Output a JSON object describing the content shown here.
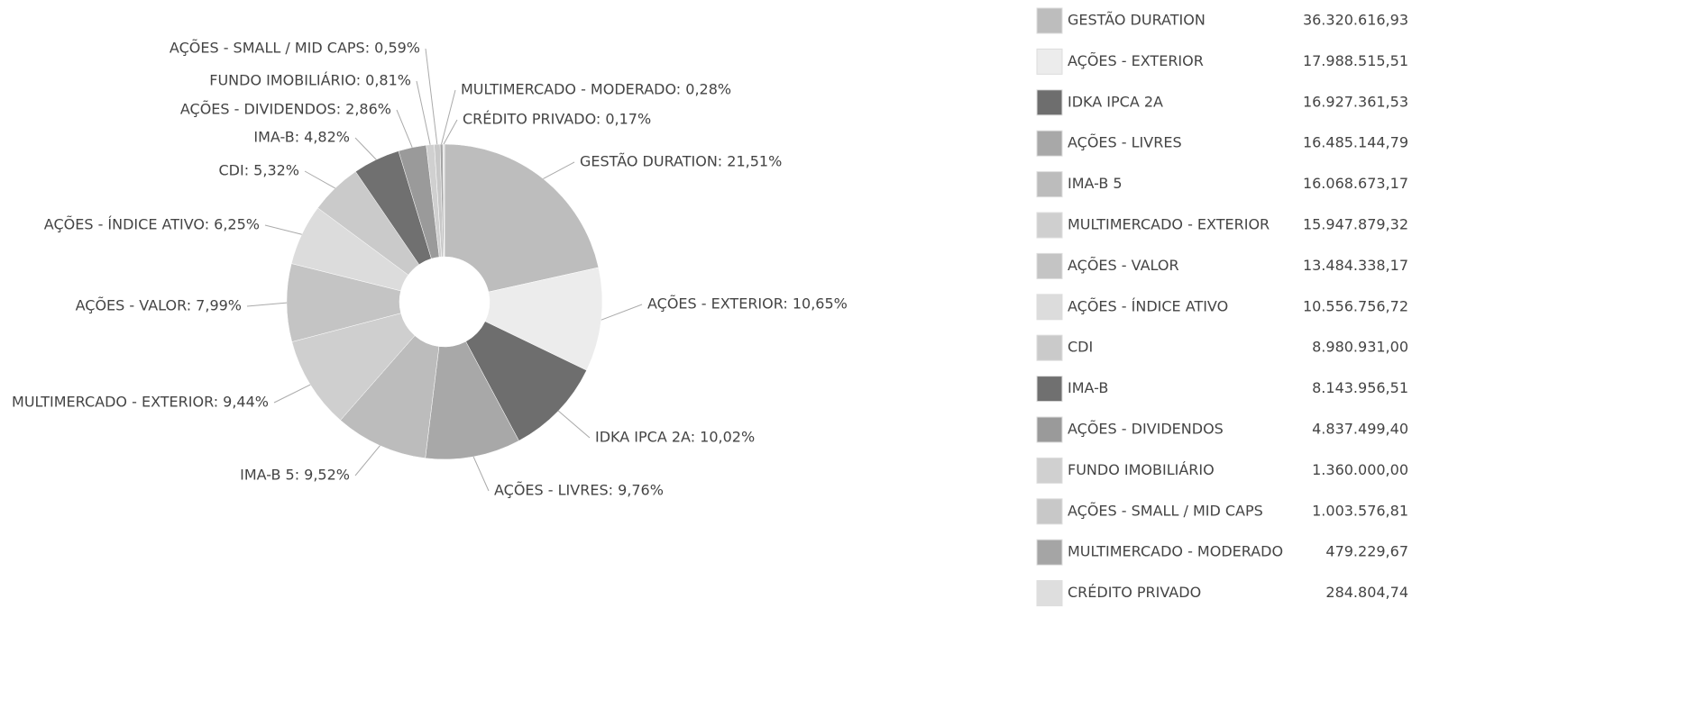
{
  "chart_data": {
    "type": "donut",
    "categories": [
      "GESTÃO DURATION",
      "AÇÕES - EXTERIOR",
      "IDKA IPCA 2A",
      "AÇÕES - LIVRES",
      "IMA-B 5",
      "MULTIMERCADO - EXTERIOR",
      "AÇÕES - VALOR",
      "AÇÕES - ÍNDICE ATIVO",
      "CDI",
      "IMA-B",
      "AÇÕES - DIVIDENDOS",
      "FUNDO IMOBILIÁRIO",
      "AÇÕES - SMALL / MID CAPS",
      "MULTIMERCADO - MODERADO",
      "CRÉDITO PRIVADO"
    ],
    "values": [
      21.51,
      10.65,
      10.02,
      9.76,
      9.52,
      9.44,
      7.99,
      6.25,
      5.32,
      4.82,
      2.86,
      0.81,
      0.59,
      0.28,
      0.17
    ],
    "value_labels": [
      "GESTÃO DURATION: 21,51%",
      "AÇÕES - EXTERIOR: 10,65%",
      "IDKA IPCA 2A: 10,02%",
      "AÇÕES - LIVRES: 9,76%",
      "IMA-B 5: 9,52%",
      "MULTIMERCADO - EXTERIOR: 9,44%",
      "AÇÕES - VALOR: 7,99%",
      "AÇÕES - ÍNDICE ATIVO: 6,25%",
      "CDI: 5,32%",
      "IMA-B: 4,82%",
      "AÇÕES - DIVIDENDOS: 2,86%",
      "FUNDO IMOBILIÁRIO: 0,81%",
      "AÇÕES - SMALL / MID CAPS: 0,59%",
      "MULTIMERCADO - MODERADO: 0,28%",
      "CRÉDITO PRIVADO: 0,17%"
    ],
    "amounts": [
      36320616.93,
      17988515.51,
      16927361.53,
      16485144.79,
      16068673.17,
      15947879.32,
      13484338.17,
      10556756.72,
      8980931.0,
      8143956.51,
      4837499.4,
      1360000.0,
      1003576.81,
      479229.67,
      284804.74
    ],
    "amount_labels": [
      "36.320.616,93",
      "17.988.515,51",
      "16.927.361,53",
      "16.485.144,79",
      "16.068.673,17",
      "15.947.879,32",
      "13.484.338,17",
      "10.556.756,72",
      "8.980.931,00",
      "8.143.956,51",
      "4.837.499,40",
      "1.360.000,00",
      "1.003.576,81",
      "479.229,67",
      "284.804,74"
    ],
    "colors": [
      "#bdbdbd",
      "#ececec",
      "#6e6e6e",
      "#a8a8a8",
      "#bcbcbc",
      "#cfcfcf",
      "#c4c4c4",
      "#dcdcdc",
      "#cacaca",
      "#707070",
      "#9a9a9a",
      "#d0d0d0",
      "#c8c8c8",
      "#a5a5a5",
      "#dedede"
    ]
  }
}
